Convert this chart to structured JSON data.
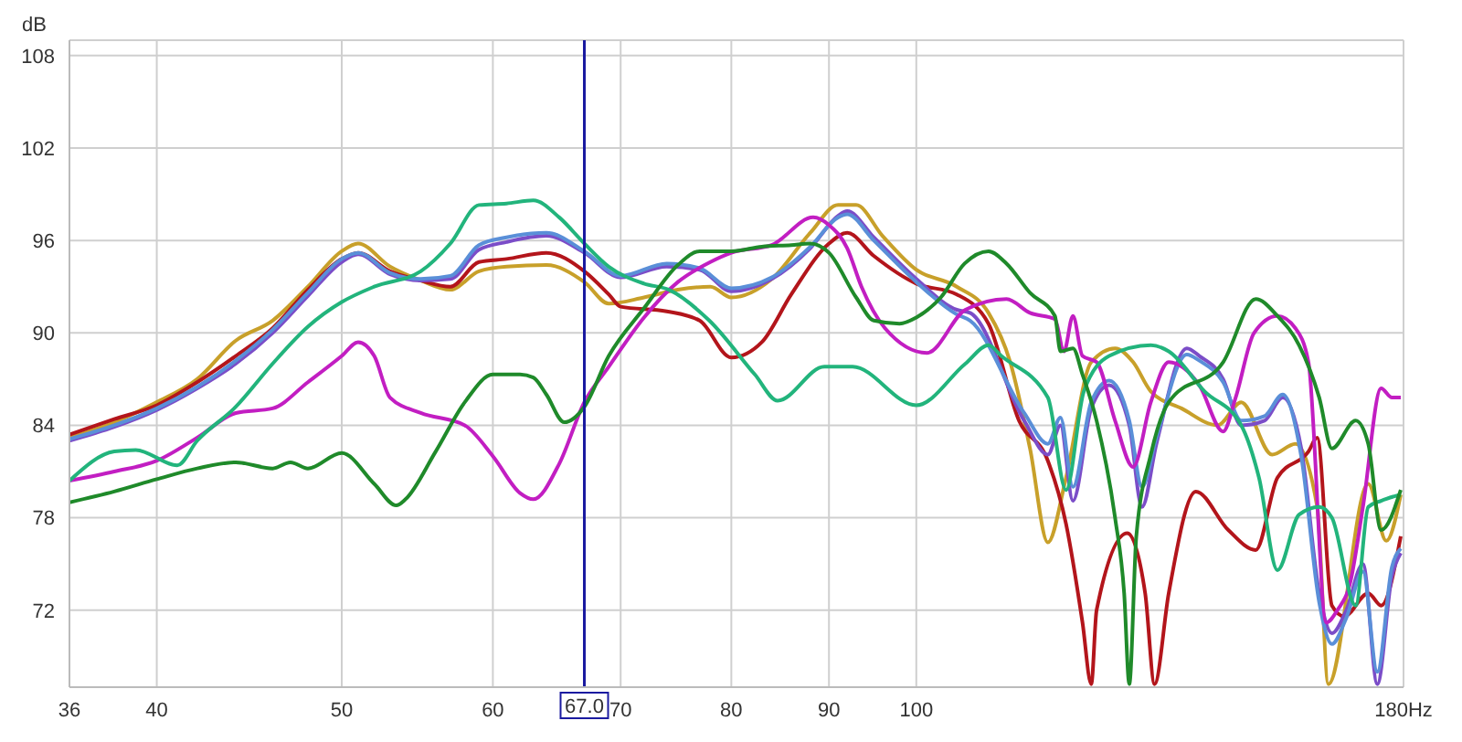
{
  "chart_data": {
    "type": "line",
    "ylabel": "dB",
    "log": "x",
    "grid": true,
    "marker": "none",
    "xlim": [
      36,
      180
    ],
    "xticks": [
      36,
      40,
      50,
      60,
      70,
      80,
      90,
      100,
      {
        "value": 180,
        "label": "180Hz"
      }
    ],
    "ylim": [
      67,
      109
    ],
    "yticks": [
      72,
      78,
      84,
      90,
      96,
      102,
      108
    ],
    "ref_lines": [
      {
        "axis": "x",
        "value": 67,
        "label": "67.0",
        "color": "#1a1aa0"
      }
    ],
    "series": [
      {
        "color": "#c8a02a",
        "x": [
          36,
          38,
          40,
          42,
          44,
          46,
          48,
          50,
          51,
          53,
          55,
          57,
          59,
          61,
          64,
          67,
          69,
          72,
          75,
          78,
          80,
          84,
          88,
          91,
          93,
          96,
          100,
          105,
          109.1,
          112,
          114.7,
          117.2,
          119.8,
          123.5,
          127.1,
          129.9,
          132.7,
          137.7,
          143.8,
          148,
          153.6,
          158,
          162.2,
          164.4,
          172.5,
          176.3,
          179.4
        ],
        "values": [
          83.2,
          84.2,
          85.5,
          87,
          89.5,
          90.8,
          93,
          95.3,
          95.8,
          94.3,
          93.4,
          92.8,
          94,
          94.3,
          94.4,
          93.3,
          91.9,
          92.3,
          92.8,
          93,
          92.3,
          93.5,
          96.5,
          98.3,
          98.3,
          96.3,
          94.1,
          93,
          91.3,
          88.1,
          82.5,
          76.4,
          80.6,
          88.1,
          89,
          88.1,
          86.2,
          85.1,
          84,
          85.5,
          82.1,
          82.8,
          78.7,
          67.2,
          80.2,
          76.5,
          79.5
        ]
      },
      {
        "color": "#b3151b",
        "x": [
          36,
          38,
          40,
          42,
          44,
          46,
          48,
          50,
          51,
          53,
          55,
          57,
          59,
          61,
          64,
          67,
          69,
          70,
          74,
          77,
          80,
          83,
          86,
          90,
          92,
          95,
          100,
          105,
          109.1,
          113.2,
          117.2,
          119.8,
          122.2,
          123.5,
          124.3,
          129,
          131.8,
          133.3,
          135.6,
          140.1,
          145.7,
          150.6,
          154.6,
          160.5,
          162.2,
          165.1,
          167.6,
          172.5,
          175.2,
          179.4
        ],
        "values": [
          83.4,
          84.4,
          85.3,
          86.8,
          88.5,
          90.3,
          92.8,
          94.8,
          95.2,
          94,
          93.4,
          93,
          94.6,
          94.8,
          95.2,
          94,
          92.5,
          91.7,
          91.4,
          90.8,
          88.4,
          89.4,
          92.5,
          95.8,
          96.5,
          95,
          93.2,
          92.5,
          90.6,
          84.3,
          81.7,
          77.6,
          71.2,
          67.2,
          72,
          77,
          73.1,
          67.2,
          73.1,
          79.7,
          77.2,
          75.9,
          80.6,
          82.3,
          83.2,
          72.3,
          71.6,
          73.1,
          72.3,
          76.8
        ]
      },
      {
        "color": "#7b4dc8",
        "x": [
          36,
          38,
          40,
          42,
          44,
          46,
          48,
          50,
          51,
          53,
          55,
          57,
          59,
          61,
          64,
          67,
          70,
          74,
          77,
          80,
          84,
          88,
          91,
          92,
          95,
          100,
          105,
          106.7,
          113.9,
          117.2,
          119,
          120.8,
          123.5,
          126.2,
          129.3,
          131.3,
          133.6,
          138.6,
          140.7,
          144.8,
          148,
          152.2,
          155.6,
          159.1,
          162.6,
          165.1,
          168,
          171.4,
          174.4,
          177.5,
          179.4
        ],
        "values": [
          83,
          83.9,
          85,
          86.4,
          88,
          90,
          92.4,
          94.6,
          95.1,
          93.8,
          93.4,
          93.5,
          95.4,
          95.9,
          96.3,
          95.2,
          93.6,
          94.3,
          94.1,
          92.7,
          93.5,
          95.5,
          97.6,
          97.9,
          96.2,
          93.5,
          91.5,
          91.3,
          84.3,
          82.1,
          84,
          79.1,
          85.1,
          86.6,
          84,
          78.7,
          82.8,
          89,
          88.5,
          87,
          84,
          84.3,
          85.8,
          82.5,
          73.1,
          70.5,
          72,
          75,
          67.2,
          74.2,
          75.7
        ]
      },
      {
        "color": "#5a8fd8",
        "x": [
          36,
          38,
          40,
          42,
          44,
          46,
          48,
          50,
          51,
          53,
          55,
          57,
          59,
          61,
          64,
          67,
          70,
          74,
          77,
          80,
          84,
          88,
          91,
          92,
          95,
          100,
          105,
          106.7,
          113.9,
          117.2,
          119,
          120.8,
          123.5,
          126.2,
          129.3,
          131.3,
          133.6,
          138.6,
          140.7,
          144.8,
          148,
          152.2,
          155.6,
          159.1,
          162.6,
          165.1,
          168,
          171.4,
          174.4,
          177.5,
          179.4
        ],
        "values": [
          83.1,
          84,
          85.1,
          86.5,
          88.2,
          90.2,
          92.6,
          94.8,
          95.2,
          93.9,
          93.5,
          93.7,
          95.7,
          96.2,
          96.5,
          95.3,
          93.7,
          94.5,
          94.2,
          92.9,
          93.6,
          95.6,
          97.5,
          97.7,
          96,
          93.3,
          91.2,
          90.8,
          84.8,
          82.8,
          84.5,
          80,
          85.5,
          86.9,
          84.3,
          80,
          83.2,
          88.6,
          88.2,
          86.8,
          84.3,
          84.6,
          86,
          82,
          72.5,
          69.8,
          71.5,
          74.5,
          68,
          74.8,
          76
        ]
      },
      {
        "color": "#c21ec2",
        "x": [
          36,
          38,
          40,
          42,
          44,
          46,
          48,
          50,
          51,
          52,
          53,
          55,
          58,
          60,
          62,
          63,
          65,
          67,
          69,
          72,
          75,
          78,
          80,
          84,
          88.3,
          90,
          92,
          93.6,
          96.3,
          101.3,
          106.1,
          111.5,
          114.7,
          118.2,
          119.5,
          120.8,
          122.2,
          124.3,
          127.1,
          129.9,
          132.7,
          135.6,
          140.7,
          144.8,
          147,
          150.3,
          154.6,
          158,
          160.5,
          164,
          166.2,
          168.8,
          171.4,
          175.2,
          177.5,
          179.4
        ],
        "values": [
          80.4,
          81,
          81.7,
          83.2,
          84.8,
          85.1,
          86.8,
          88.5,
          89.4,
          88.5,
          85.8,
          84.8,
          84,
          82,
          79.6,
          79.2,
          81.5,
          85.5,
          87.8,
          91,
          93.3,
          94.6,
          95.2,
          95.7,
          97.5,
          97,
          95.5,
          93,
          90.3,
          88.7,
          91.5,
          92.2,
          91.3,
          90.9,
          88.8,
          91.1,
          88.5,
          88.1,
          84.3,
          81.3,
          85.5,
          88.1,
          86.6,
          83.6,
          85.8,
          90,
          91.1,
          90.3,
          88.1,
          71.2,
          72,
          73.8,
          78.7,
          86.4,
          85.8,
          85.8
        ]
      },
      {
        "color": "#22b47c",
        "x": [
          36,
          38,
          39,
          41,
          42,
          44,
          46,
          48,
          50,
          52,
          55,
          57,
          59,
          61,
          63,
          65,
          67,
          69,
          72,
          74.2,
          77.9,
          82.3,
          84.6,
          89.5,
          92.6,
          100,
          106.1,
          109.1,
          110.8,
          117.2,
          119.8,
          122.4,
          126.2,
          132.7,
          135.6,
          141.6,
          148,
          151.2,
          154.6,
          158.7,
          162.6,
          165.1,
          169.9,
          172.5,
          175.2,
          179.4
        ],
        "values": [
          80.4,
          82.3,
          82.4,
          81.4,
          83,
          85.2,
          88,
          90.4,
          92,
          93,
          94,
          95.8,
          98.3,
          98.4,
          98.6,
          97.5,
          95.8,
          94.3,
          93.2,
          92.8,
          90.8,
          87.3,
          85.6,
          87.8,
          87.8,
          85.3,
          88,
          89.2,
          88.5,
          85.8,
          79.8,
          86.2,
          88.5,
          89.2,
          88.8,
          86.2,
          84,
          80.6,
          74.6,
          78.2,
          78.7,
          78,
          72.3,
          78.7,
          79.1,
          79.5
        ]
      },
      {
        "color": "#1f8a2a",
        "x": [
          36,
          38,
          40,
          42,
          44,
          46,
          47,
          48,
          50,
          52,
          53.4,
          54,
          56,
          58,
          60,
          62,
          63,
          64,
          65.4,
          67,
          69,
          72,
          75,
          77,
          80,
          83,
          86,
          88,
          90,
          93,
          95,
          98,
          100,
          103,
          106,
          109.1,
          111.5,
          114.7,
          118.2,
          119,
          120.8,
          122.2,
          124.3,
          127.1,
          128.5,
          129.3,
          130.4,
          132.7,
          135.6,
          144.8,
          150.6,
          154.6,
          158.7,
          162.6,
          165.1,
          169.9,
          172.5,
          175.2,
          179.4
        ],
        "values": [
          79,
          79.7,
          80.5,
          81.2,
          81.6,
          81.2,
          81.6,
          81.2,
          82.2,
          80.2,
          78.8,
          79.2,
          82.3,
          85.5,
          87.3,
          87.3,
          87.1,
          86,
          84.2,
          85.2,
          88.5,
          91.6,
          94.4,
          95.3,
          95.3,
          95.6,
          95.7,
          95.8,
          95.2,
          92.3,
          90.8,
          90.6,
          91,
          92.3,
          94.5,
          95.3,
          94.5,
          92.6,
          91.1,
          88.8,
          89,
          87.3,
          84.3,
          78,
          73.1,
          67.2,
          76.8,
          82.1,
          85.5,
          88.1,
          92.2,
          91.1,
          89.2,
          85.8,
          82.5,
          84.3,
          82.8,
          77.2,
          79.8
        ]
      }
    ]
  }
}
